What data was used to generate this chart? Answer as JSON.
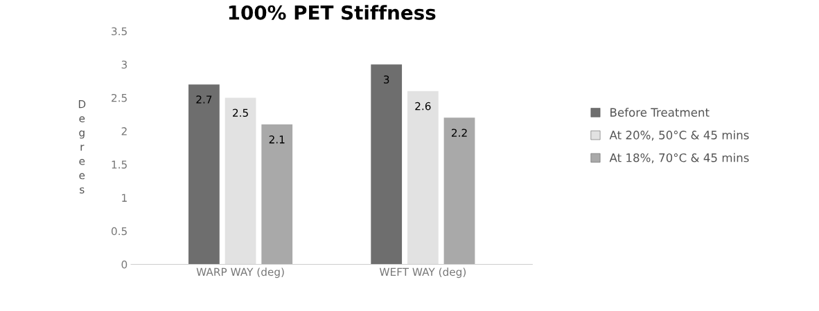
{
  "chart_data": {
    "type": "bar",
    "title": "100% PET Stiffness",
    "ylabel": "Degrees",
    "categories": [
      "WARP WAY (deg)",
      "WEFT WAY (deg)"
    ],
    "series": [
      {
        "name": "Before Treatment",
        "color": "#6e6e6e",
        "values": [
          2.7,
          3
        ]
      },
      {
        "name": "At 20%, 50°C & 45 mins",
        "color": "#e2e2e2",
        "values": [
          2.5,
          2.6
        ]
      },
      {
        "name": "At 18%, 70°C & 45 mins",
        "color": "#a9a9a9",
        "values": [
          2.1,
          2.2
        ]
      }
    ],
    "ylim": [
      0,
      3.5
    ],
    "yticks": [
      0,
      0.5,
      1,
      1.5,
      2,
      2.5,
      3,
      3.5
    ],
    "grid": false,
    "legend": "right",
    "data_labels": true
  }
}
